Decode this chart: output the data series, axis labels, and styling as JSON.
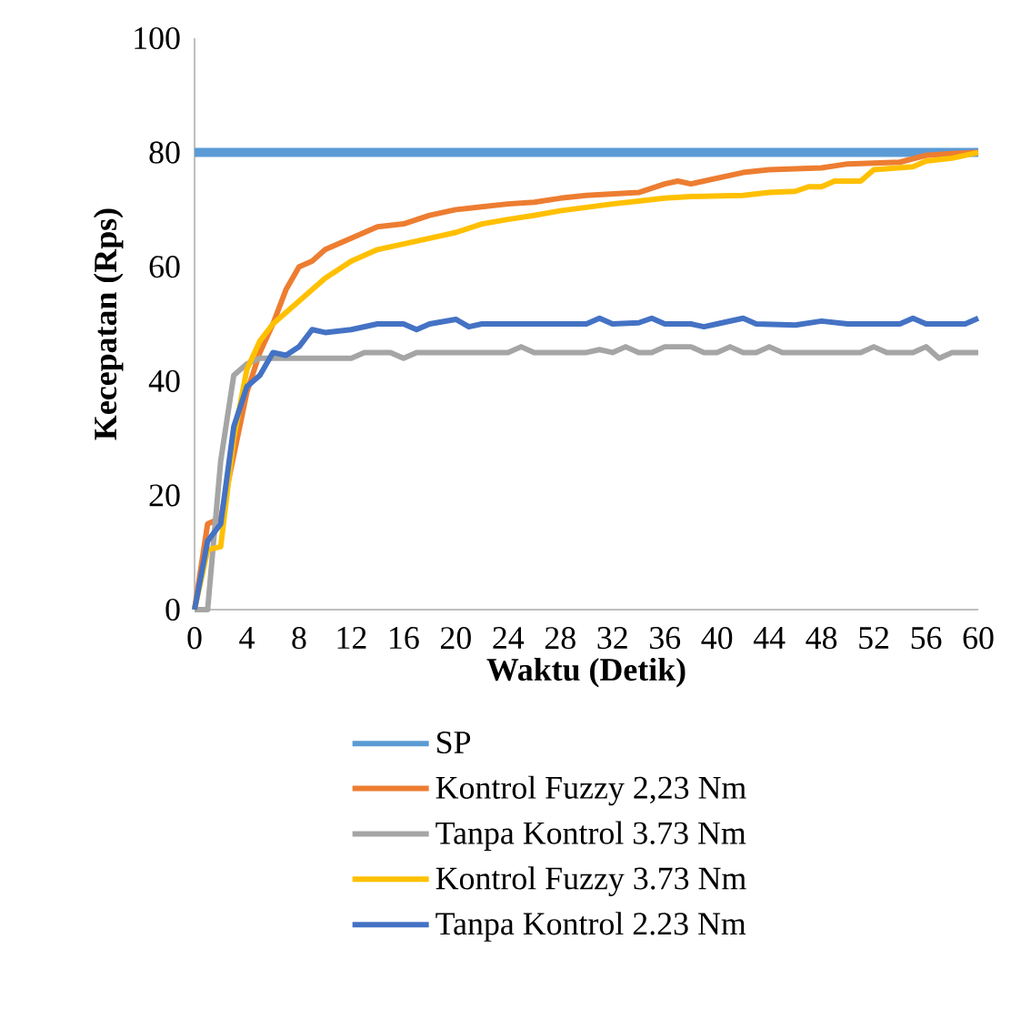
{
  "chart_data": {
    "type": "line",
    "xlabel": "Waktu (Detik)",
    "ylabel": "Kecepatan (Rps)",
    "xlim": [
      0,
      60
    ],
    "ylim": [
      0,
      100
    ],
    "xticks": [
      0,
      4,
      8,
      12,
      16,
      20,
      24,
      28,
      32,
      36,
      40,
      44,
      48,
      52,
      56,
      60
    ],
    "yticks": [
      0,
      20,
      40,
      60,
      80,
      100
    ],
    "grid": false,
    "legend": "bottom",
    "marker": "none",
    "line_style": "solid",
    "series": [
      {
        "name": "SP",
        "color": "#5b9bd5",
        "x": [
          0,
          60
        ],
        "values": [
          80,
          80
        ]
      },
      {
        "name": "Kontrol Fuzzy 2,23 Nm",
        "color": "#ed7d31",
        "x": [
          0,
          1,
          2,
          3,
          4,
          5,
          6,
          7,
          8,
          9,
          10,
          12,
          14,
          16,
          18,
          20,
          22,
          24,
          26,
          28,
          30,
          34,
          36,
          37,
          38,
          40,
          42,
          44,
          48,
          50,
          54,
          56,
          58,
          60
        ],
        "values": [
          0,
          15,
          16,
          27,
          38,
          45,
          50,
          56,
          60,
          61,
          63,
          65,
          67,
          67.5,
          69,
          70,
          70.5,
          71,
          71.3,
          72,
          72.5,
          73,
          74.5,
          75,
          74.5,
          75.5,
          76.5,
          77,
          77.3,
          78,
          78.3,
          79.5,
          79.8,
          80
        ]
      },
      {
        "name": "Tanpa Kontrol 3.73 Nm",
        "color": "#a5a5a5",
        "x": [
          0,
          1,
          2,
          3,
          4,
          5,
          8,
          12,
          13,
          15,
          16,
          17,
          24,
          25,
          26,
          30,
          31,
          32,
          33,
          34,
          35,
          36,
          38,
          39,
          40,
          41,
          42,
          43,
          44,
          45,
          51,
          52,
          53,
          55,
          56,
          57,
          58,
          60
        ],
        "values": [
          0,
          0,
          26,
          41,
          43,
          44,
          44,
          44,
          45,
          45,
          44,
          45,
          45,
          46,
          45,
          45,
          45.5,
          45,
          46,
          45,
          45,
          46,
          46,
          45,
          45,
          46,
          45,
          45,
          46,
          45,
          45,
          46,
          45,
          45,
          46,
          44,
          45,
          45
        ]
      },
      {
        "name": "Kontrol Fuzzy 3.73 Nm",
        "color": "#ffc000",
        "x": [
          0,
          1,
          2,
          3,
          4,
          5,
          6,
          8,
          10,
          12,
          14,
          16,
          18,
          20,
          22,
          24,
          26,
          28,
          30,
          32,
          34,
          36,
          38,
          42,
          44,
          46,
          47,
          48,
          49,
          51,
          52,
          55,
          56,
          58,
          60
        ],
        "values": [
          0,
          10.5,
          11,
          30,
          42,
          47,
          50,
          54,
          58,
          61,
          63,
          64,
          65,
          66,
          67.5,
          68.3,
          69,
          69.8,
          70.4,
          71,
          71.5,
          72,
          72.3,
          72.5,
          73,
          73.2,
          74,
          74,
          75,
          75,
          77,
          77.5,
          78.5,
          79,
          80
        ]
      },
      {
        "name": "Tanpa Kontrol 2.23 Nm",
        "color": "#4472c4",
        "x": [
          0,
          1,
          2,
          3,
          4,
          5,
          6,
          7,
          8,
          9,
          10,
          12,
          14,
          16,
          17,
          18,
          20,
          21,
          22,
          26,
          30,
          31,
          32,
          34,
          35,
          36,
          38,
          39,
          40,
          42,
          43,
          46,
          48,
          50,
          54,
          55,
          56,
          59,
          60
        ],
        "values": [
          0,
          12,
          15,
          32,
          39,
          41,
          45,
          44.5,
          46,
          49,
          48.5,
          49,
          50,
          50,
          49,
          50,
          50.8,
          49.5,
          50,
          50,
          50,
          51,
          50,
          50.2,
          51,
          50,
          50,
          49.5,
          50,
          51,
          50,
          49.8,
          50.5,
          50,
          50,
          51,
          50,
          50,
          51
        ]
      }
    ]
  }
}
